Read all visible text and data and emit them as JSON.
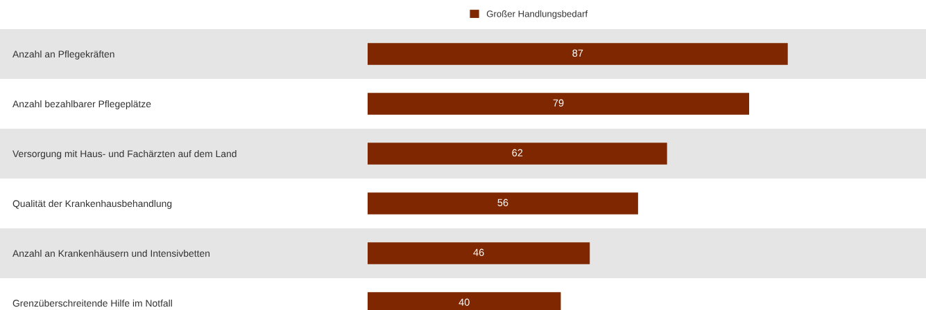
{
  "chart_data": {
    "type": "bar",
    "orientation": "horizontal",
    "categories": [
      "Anzahl an Pflegekräften",
      "Anzahl bezahlbarer Pflegeplätze",
      "Versorgung mit Haus- und Fachärzten auf dem Land",
      "Qualität der Krankenhausbehandlung",
      "Anzahl an Krankenhäusern und Intensivbetten",
      "Grenzüberschreitende Hilfe im Notfall"
    ],
    "series": [
      {
        "name": "Großer Handlungsbedarf",
        "color": "#7f2700",
        "values": [
          87,
          79,
          62,
          56,
          46,
          40
        ]
      }
    ],
    "data_labels": true,
    "legend": "top",
    "tick_labels": "y",
    "grid": false
  }
}
